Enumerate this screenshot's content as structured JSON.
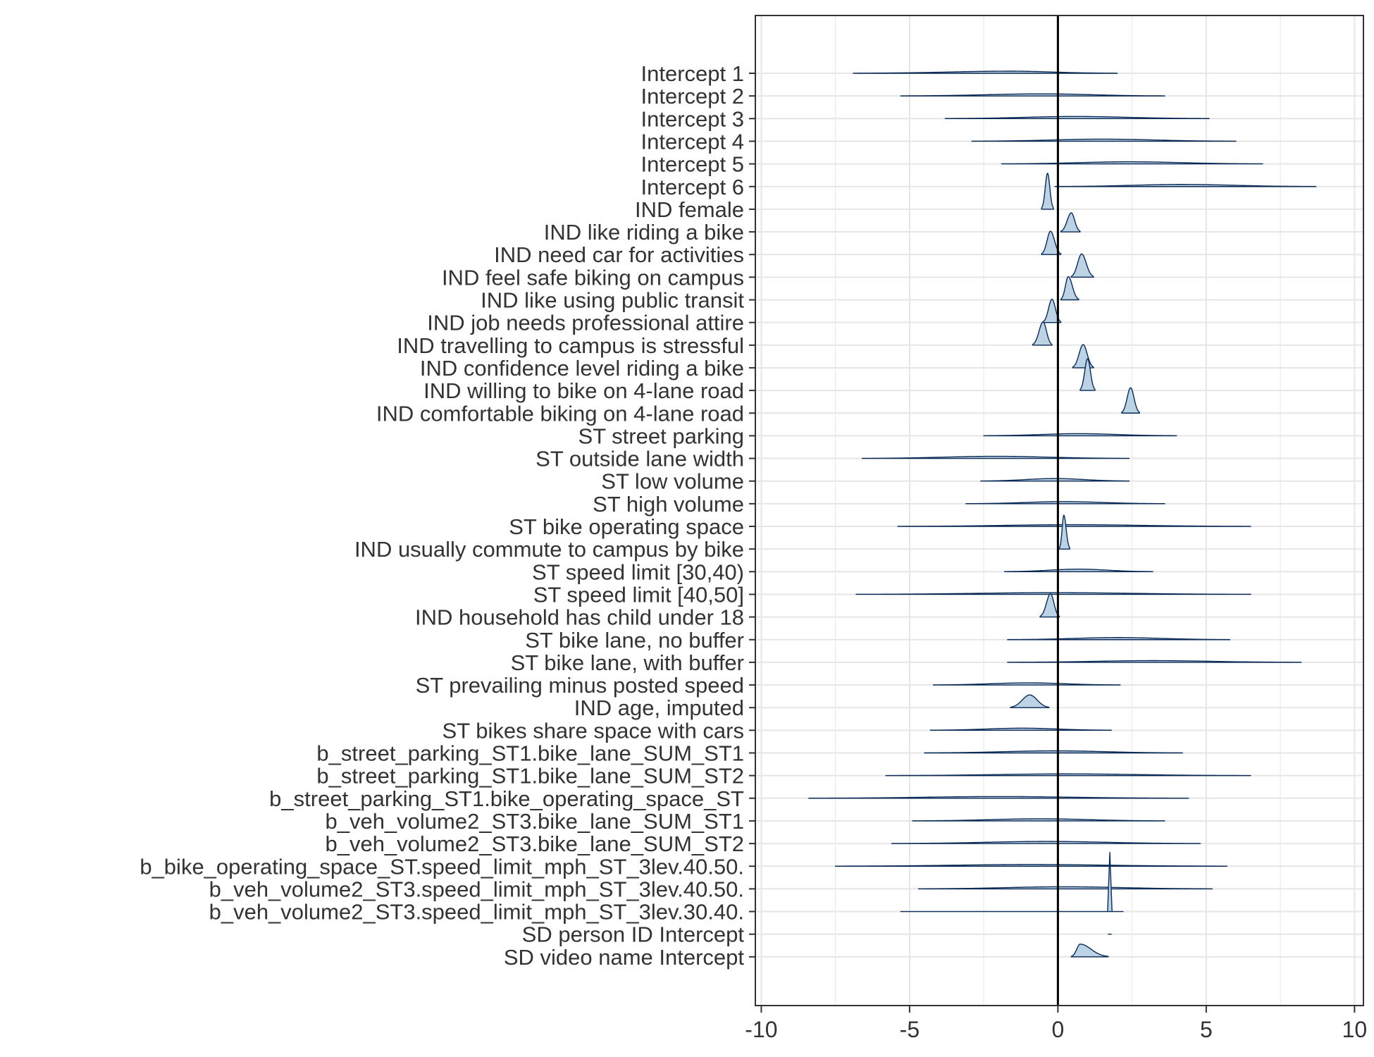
{
  "chart_data": {
    "type": "ridgeline",
    "title": "",
    "xlabel": "",
    "ylabel": "",
    "xlim": [
      -10.2,
      10.3
    ],
    "x_ticks": [
      -10,
      -5,
      0,
      5,
      10
    ],
    "x_tick_labels": [
      "-10",
      "-5",
      "0",
      "5",
      "10"
    ],
    "grid": true,
    "reference_line_x": 0,
    "colors": {
      "fill": "#bcd3e6",
      "line": "#0b2a55",
      "grid": "#e6e6e6",
      "axis": "#333333",
      "zero_line": "#000000"
    },
    "rows": [
      {
        "label": "Intercept 1",
        "lo": -6.9,
        "hi": 2.0,
        "mode": -1.6,
        "peak": 0.05
      },
      {
        "label": "Intercept 2",
        "lo": -5.3,
        "hi": 3.6,
        "mode": -0.5,
        "peak": 0.05
      },
      {
        "label": "Intercept 3",
        "lo": -3.8,
        "hi": 5.1,
        "mode": 0.6,
        "peak": 0.05
      },
      {
        "label": "Intercept 4",
        "lo": -2.9,
        "hi": 6.0,
        "mode": 1.5,
        "peak": 0.05
      },
      {
        "label": "Intercept 5",
        "lo": -1.9,
        "hi": 6.9,
        "mode": 2.4,
        "peak": 0.05
      },
      {
        "label": "Intercept 6",
        "lo": -0.1,
        "hi": 8.7,
        "mode": 4.2,
        "peak": 0.05
      },
      {
        "label": "IND female",
        "lo": -0.55,
        "hi": -0.15,
        "mode": -0.35,
        "peak": 0.85
      },
      {
        "label": "IND like riding a bike",
        "lo": 0.1,
        "hi": 0.75,
        "mode": 0.45,
        "peak": 0.45
      },
      {
        "label": "IND need car for activities",
        "lo": -0.55,
        "hi": 0.1,
        "mode": -0.25,
        "peak": 0.55
      },
      {
        "label": "IND feel safe biking on campus",
        "lo": 0.45,
        "hi": 1.2,
        "mode": 0.8,
        "peak": 0.55
      },
      {
        "label": "IND like using public transit",
        "lo": 0.1,
        "hi": 0.7,
        "mode": 0.35,
        "peak": 0.55
      },
      {
        "label": "IND job needs professional attire",
        "lo": -0.5,
        "hi": 0.1,
        "mode": -0.2,
        "peak": 0.55
      },
      {
        "label": "IND travelling to campus is stressful",
        "lo": -0.85,
        "hi": -0.2,
        "mode": -0.5,
        "peak": 0.55
      },
      {
        "label": "IND confidence level riding a bike",
        "lo": 0.5,
        "hi": 1.2,
        "mode": 0.85,
        "peak": 0.55
      },
      {
        "label": "IND willing to bike on 4-lane road",
        "lo": 0.75,
        "hi": 1.25,
        "mode": 1.0,
        "peak": 0.75
      },
      {
        "label": "IND comfortable biking on 4-lane road",
        "lo": 2.15,
        "hi": 2.75,
        "mode": 2.45,
        "peak": 0.6
      },
      {
        "label": "ST street parking",
        "lo": -2.5,
        "hi": 4.0,
        "mode": 0.7,
        "peak": 0.05
      },
      {
        "label": "ST outside lane width",
        "lo": -6.6,
        "hi": 2.4,
        "mode": -2.1,
        "peak": 0.05
      },
      {
        "label": "ST low volume",
        "lo": -2.6,
        "hi": 2.4,
        "mode": -0.1,
        "peak": 0.06
      },
      {
        "label": "ST high volume",
        "lo": -3.1,
        "hi": 3.6,
        "mode": 0.2,
        "peak": 0.05
      },
      {
        "label": "ST bike operating space",
        "lo": -5.4,
        "hi": 6.5,
        "mode": 0.5,
        "peak": 0.04
      },
      {
        "label": "IND usually commute to campus by bike",
        "lo": 0.05,
        "hi": 0.4,
        "mode": 0.2,
        "peak": 0.8
      },
      {
        "label": "ST speed limit [30,40)",
        "lo": -1.8,
        "hi": 3.2,
        "mode": 0.7,
        "peak": 0.06
      },
      {
        "label": "ST speed limit [40,50]",
        "lo": -6.8,
        "hi": 6.5,
        "mode": -0.1,
        "peak": 0.04
      },
      {
        "label": "IND household has child under 18",
        "lo": -0.6,
        "hi": 0.05,
        "mode": -0.25,
        "peak": 0.55
      },
      {
        "label": "ST bike lane, no buffer",
        "lo": -1.7,
        "hi": 5.8,
        "mode": 2.0,
        "peak": 0.05
      },
      {
        "label": "ST bike lane, with buffer",
        "lo": -1.7,
        "hi": 8.2,
        "mode": 3.2,
        "peak": 0.04
      },
      {
        "label": "ST prevailing minus posted speed",
        "lo": -4.2,
        "hi": 2.1,
        "mode": -1.0,
        "peak": 0.05
      },
      {
        "label": "IND age, imputed",
        "lo": -1.6,
        "hi": -0.3,
        "mode": -0.95,
        "peak": 0.3
      },
      {
        "label": "ST bikes share space with cars",
        "lo": -4.3,
        "hi": 1.8,
        "mode": -1.2,
        "peak": 0.05
      },
      {
        "label": "b_street_parking_ST1.bike_lane_SUM_ST1",
        "lo": -4.5,
        "hi": 4.2,
        "mode": -0.1,
        "peak": 0.05
      },
      {
        "label": "b_street_parking_ST1.bike_lane_SUM_ST2",
        "lo": -5.8,
        "hi": 6.5,
        "mode": 0.3,
        "peak": 0.04
      },
      {
        "label": "b_street_parking_ST1.bike_operating_space_ST",
        "lo": -8.4,
        "hi": 4.4,
        "mode": -2.0,
        "peak": 0.04
      },
      {
        "label": "b_veh_volume2_ST3.bike_lane_SUM_ST1",
        "lo": -4.9,
        "hi": 3.6,
        "mode": -0.6,
        "peak": 0.05
      },
      {
        "label": "b_veh_volume2_ST3.bike_lane_SUM_ST2",
        "lo": -5.6,
        "hi": 4.8,
        "mode": -0.4,
        "peak": 0.05
      },
      {
        "label": "b_bike_operating_space_ST.speed_limit_mph_ST_3lev.40.50.",
        "lo": -7.5,
        "hi": 5.7,
        "mode": -0.9,
        "peak": 0.04
      },
      {
        "label": "b_veh_volume2_ST3.speed_limit_mph_ST_3lev.40.50.",
        "lo": -4.7,
        "hi": 5.2,
        "mode": 0.2,
        "peak": 0.05
      },
      {
        "label": "b_veh_volume2_ST3.speed_limit_mph_ST_3lev.30.40.",
        "lo": -5.3,
        "hi": 2.2,
        "mode": 1.75,
        "peak": 1.4,
        "spike_hw": 0.05
      },
      {
        "label": "SD person ID Intercept",
        "lo": 1.7,
        "hi": 1.8,
        "mode": 1.75,
        "peak": 0.0
      },
      {
        "label": "SD video name Intercept",
        "lo": 0.45,
        "hi": 1.7,
        "mode": 0.75,
        "peak": 0.3
      }
    ]
  }
}
